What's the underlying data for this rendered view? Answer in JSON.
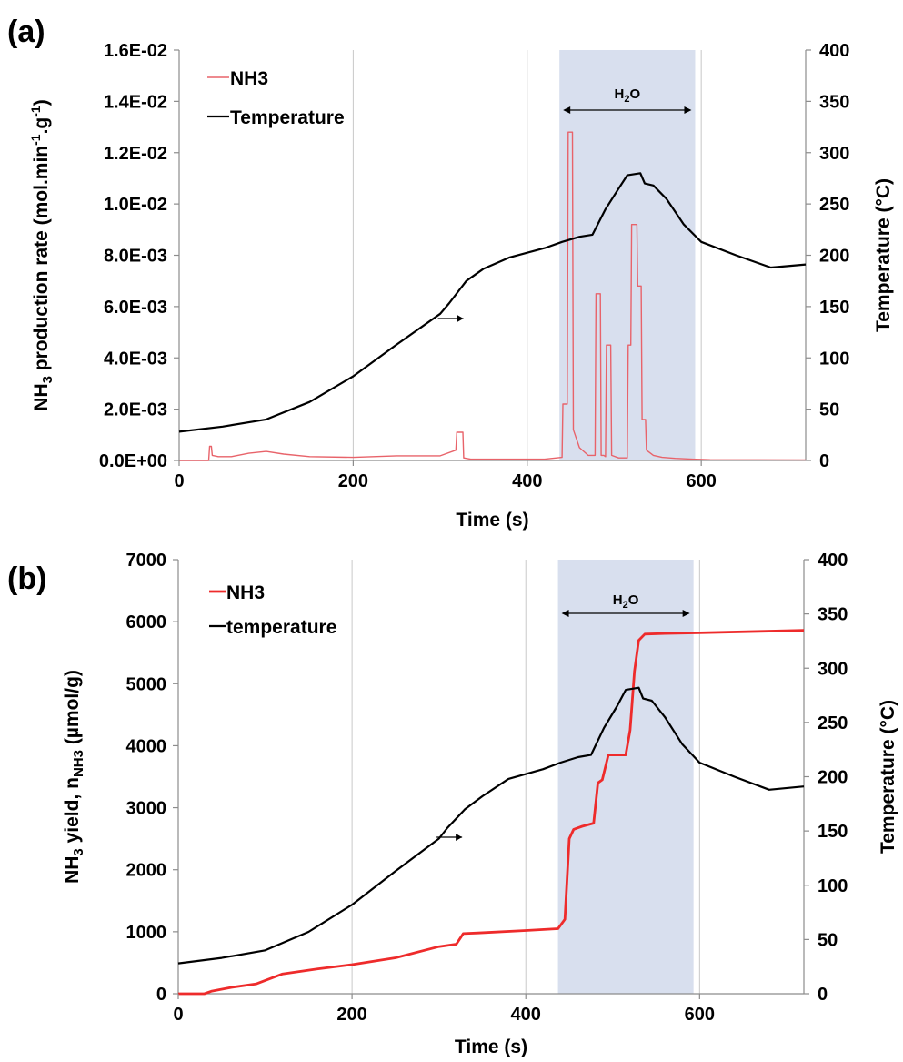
{
  "chart_data": [
    {
      "panel": "(a)",
      "type": "line",
      "xlabel": "Time (s)",
      "ylabel_prefix": "NH",
      "ylabel_sub": "3",
      "ylabel_rest": " production rate (mol.min",
      "ylabel_sup1": "-1",
      "ylabel_mid": ".g",
      "ylabel_sup2": "-1",
      "ylabel_end": ")",
      "y2label": "Temperature (°C)",
      "xlim": [
        0,
        720
      ],
      "ylim": [
        0,
        0.016
      ],
      "y2lim": [
        0,
        400
      ],
      "xticks": [
        "0",
        "200",
        "400",
        "600"
      ],
      "xtick_values": [
        0,
        200,
        400,
        600
      ],
      "yticks": [
        "0.0E+00",
        "2.0E-03",
        "4.0E-03",
        "6.0E-03",
        "8.0E-03",
        "1.0E-02",
        "1.2E-02",
        "1.4E-02",
        "1.6E-02"
      ],
      "y2ticks": [
        "0",
        "50",
        "100",
        "150",
        "200",
        "250",
        "300",
        "350",
        "400"
      ],
      "legend": [
        "NH3",
        "Temperature"
      ],
      "legend_position": "top-left",
      "shaded_region": {
        "x_start": 437,
        "x_end": 593,
        "label_main": "H",
        "label_sub": "2",
        "label_end": "O"
      },
      "colors": {
        "nh3": "#e8636a",
        "temperature": "#000000",
        "shade": "#d8dfee"
      },
      "series": [
        {
          "name": "NH3",
          "axis": "left",
          "x": [
            0,
            34,
            35,
            37,
            38,
            45,
            60,
            80,
            100,
            120,
            150,
            200,
            250,
            300,
            318,
            319,
            326,
            327,
            335,
            380,
            420,
            440,
            441,
            446,
            447,
            452,
            453,
            460,
            470,
            478,
            479,
            484,
            485,
            488,
            490,
            491,
            496,
            497,
            505,
            515,
            516,
            519,
            520,
            526,
            527,
            531,
            532,
            536,
            537,
            545,
            555,
            570,
            590,
            610,
            720
          ],
          "y": [
            0.0,
            0.0,
            0.00055,
            0.00055,
            0.0002,
            0.00015,
            0.00015,
            0.00028,
            0.00035,
            0.00025,
            0.00015,
            0.00012,
            0.00018,
            0.00018,
            0.0004,
            0.0011,
            0.0011,
            0.0001,
            5e-05,
            5e-05,
            5e-05,
            0.00012,
            0.0022,
            0.0022,
            0.0128,
            0.0128,
            0.0012,
            0.0005,
            0.0002,
            0.0002,
            0.0065,
            0.0065,
            0.0002,
            0.0002,
            0.00015,
            0.0045,
            0.0045,
            0.0002,
            0.0001,
            0.0001,
            0.0045,
            0.0045,
            0.0092,
            0.0092,
            0.0068,
            0.0068,
            0.0016,
            0.0016,
            0.0004,
            0.0002,
            0.00012,
            8e-05,
            5e-05,
            3e-05,
            2e-05
          ]
        },
        {
          "name": "Temperature",
          "axis": "right",
          "x": [
            0,
            50,
            100,
            150,
            200,
            250,
            300,
            310,
            330,
            350,
            380,
            420,
            440,
            460,
            475,
            490,
            505,
            515,
            530,
            535,
            545,
            560,
            580,
            600,
            640,
            680,
            720
          ],
          "y": [
            28,
            33,
            40,
            57,
            82,
            113,
            143,
            153,
            175,
            187,
            198,
            207,
            213,
            218,
            220,
            245,
            265,
            278,
            280,
            270,
            268,
            255,
            230,
            213,
            200,
            188,
            191
          ]
        }
      ]
    },
    {
      "panel": "(b)",
      "type": "line",
      "xlabel": "Time (s)",
      "ylabel_prefix": "NH",
      "ylabel_sub": "3",
      "ylabel_rest": " yield, n",
      "ylabel_sub2": "NH3",
      "ylabel_end": " (µmol/g)",
      "y2label": "Temperature (°C)",
      "xlim": [
        0,
        720
      ],
      "ylim": [
        0,
        7000
      ],
      "y2lim": [
        0,
        400
      ],
      "xticks": [
        "0",
        "200",
        "400",
        "600"
      ],
      "xtick_values": [
        0,
        200,
        400,
        600
      ],
      "yticks": [
        "0",
        "1000",
        "2000",
        "3000",
        "4000",
        "5000",
        "6000",
        "7000"
      ],
      "y2ticks": [
        "0",
        "50",
        "100",
        "150",
        "200",
        "250",
        "300",
        "350",
        "400"
      ],
      "legend": [
        "NH3",
        "temperature"
      ],
      "legend_position": "top-left",
      "shaded_region": {
        "x_start": 437,
        "x_end": 593,
        "label_main": "H",
        "label_sub": "2",
        "label_end": "O"
      },
      "colors": {
        "nh3": "#ee2b2b",
        "temperature": "#000000",
        "shade": "#d8dfee"
      },
      "series": [
        {
          "name": "NH3",
          "axis": "left",
          "x": [
            0,
            30,
            38,
            60,
            90,
            120,
            160,
            200,
            250,
            300,
            320,
            328,
            345,
            400,
            437,
            445,
            450,
            455,
            465,
            478,
            483,
            488,
            495,
            515,
            520,
            525,
            530,
            537,
            560,
            600,
            720
          ],
          "y": [
            0,
            0,
            40,
            100,
            160,
            320,
            400,
            470,
            580,
            760,
            800,
            970,
            980,
            1020,
            1050,
            1200,
            2500,
            2650,
            2700,
            2750,
            3400,
            3450,
            3850,
            3850,
            4250,
            5200,
            5700,
            5800,
            5810,
            5820,
            5860
          ]
        },
        {
          "name": "temperature",
          "axis": "right",
          "x": [
            0,
            50,
            100,
            150,
            200,
            250,
            300,
            310,
            330,
            350,
            380,
            420,
            440,
            460,
            475,
            490,
            505,
            515,
            530,
            535,
            545,
            560,
            580,
            600,
            640,
            680,
            720
          ],
          "y": [
            28,
            33,
            40,
            57,
            82,
            113,
            143,
            153,
            170,
            182,
            198,
            207,
            213,
            218,
            220,
            245,
            265,
            280,
            282,
            272,
            270,
            255,
            230,
            213,
            200,
            188,
            191
          ]
        }
      ]
    }
  ]
}
